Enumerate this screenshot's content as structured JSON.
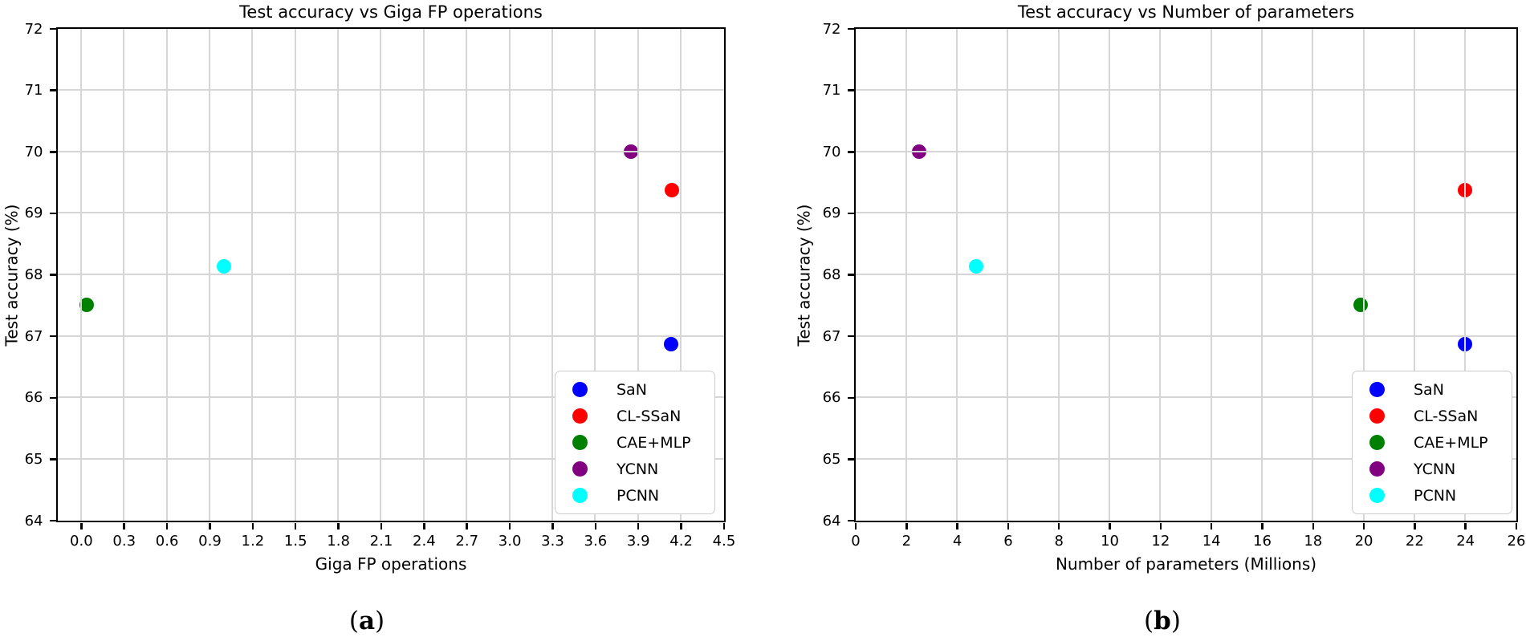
{
  "figure": {
    "background": "#ffffff",
    "grid_color": "#d6d6d6",
    "spine_color": "#000000"
  },
  "chart_data": [
    {
      "id": "a",
      "type": "scatter",
      "title": "Test accuracy vs Giga FP operations",
      "xlabel": "Giga FP operations",
      "ylabel": "Test accuracy (%)",
      "caption": "(a)",
      "xlim": [
        -0.165,
        4.5
      ],
      "ylim": [
        64,
        72
      ],
      "xticks": [
        0.0,
        0.3,
        0.6,
        0.9,
        1.2,
        1.5,
        1.8,
        2.1,
        2.4,
        2.7,
        3.0,
        3.3,
        3.6,
        3.9,
        4.2,
        4.5
      ],
      "xtick_labels": [
        "0.0",
        "0.3",
        "0.6",
        "0.9",
        "1.2",
        "1.5",
        "1.8",
        "2.1",
        "2.4",
        "2.7",
        "3.0",
        "3.3",
        "3.6",
        "3.9",
        "4.2",
        "4.5"
      ],
      "yticks": [
        64,
        65,
        66,
        67,
        68,
        69,
        70,
        71,
        72
      ],
      "ytick_labels": [
        "64",
        "65",
        "66",
        "67",
        "68",
        "69",
        "70",
        "71",
        "72"
      ],
      "grid": true,
      "legend_loc": "lower right",
      "series": [
        {
          "name": "SaN",
          "color": "#0000ff",
          "x": 4.13,
          "y": 66.87
        },
        {
          "name": "CL-SSaN",
          "color": "#ff0000",
          "x": 4.14,
          "y": 69.37
        },
        {
          "name": "CAE+MLP",
          "color": "#008000",
          "x": 0.04,
          "y": 67.5
        },
        {
          "name": "YCNN",
          "color": "#800080",
          "x": 3.85,
          "y": 70.0
        },
        {
          "name": "PCNN",
          "color": "#00ffff",
          "x": 1.0,
          "y": 68.13
        }
      ]
    },
    {
      "id": "b",
      "type": "scatter",
      "title": "Test accuracy vs Number of parameters",
      "xlabel": "Number of parameters (Millions)",
      "ylabel": "Test accuracy (%)",
      "caption": "(b)",
      "xlim": [
        0,
        26
      ],
      "ylim": [
        64,
        72
      ],
      "xticks": [
        0,
        2,
        4,
        6,
        8,
        10,
        12,
        14,
        16,
        18,
        20,
        22,
        24,
        26
      ],
      "xtick_labels": [
        "0",
        "2",
        "4",
        "6",
        "8",
        "10",
        "12",
        "14",
        "16",
        "18",
        "20",
        "22",
        "24",
        "26"
      ],
      "yticks": [
        64,
        65,
        66,
        67,
        68,
        69,
        70,
        71,
        72
      ],
      "ytick_labels": [
        "64",
        "65",
        "66",
        "67",
        "68",
        "69",
        "70",
        "71",
        "72"
      ],
      "grid": true,
      "legend_loc": "lower right",
      "series": [
        {
          "name": "SaN",
          "color": "#0000ff",
          "x": 24.0,
          "y": 66.87
        },
        {
          "name": "CL-SSaN",
          "color": "#ff0000",
          "x": 24.0,
          "y": 69.37
        },
        {
          "name": "CAE+MLP",
          "color": "#008000",
          "x": 19.9,
          "y": 67.5
        },
        {
          "name": "YCNN",
          "color": "#800080",
          "x": 2.5,
          "y": 70.0
        },
        {
          "name": "PCNN",
          "color": "#00ffff",
          "x": 4.75,
          "y": 68.13
        }
      ]
    }
  ]
}
